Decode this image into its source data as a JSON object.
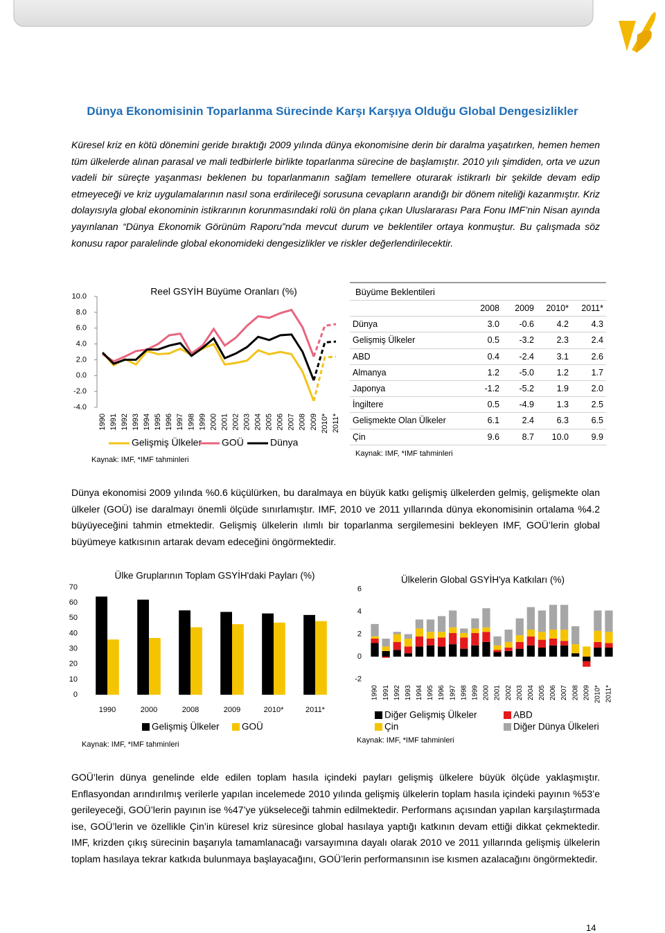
{
  "title": "Dünya Ekonomisinin Toparlanma Sürecinde Karşı Karşıya Olduğu Global Dengesizlikler",
  "paragraphs": [
    "Küresel kriz en kötü dönemini geride bıraktığı 2009 yılında dünya ekonomisine derin bir daralma yaşatırken, hemen hemen tüm ülkelerde alınan parasal ve mali tedbirlerle birlikte toparlanma sürecine de başlamıştır. 2010 yılı şimdiden, orta ve uzun vadeli bir süreçte yaşanması beklenen bu toparlanmanın sağlam temellere oturarak istikrarlı bir şekilde devam edip etmeyeceği ve kriz uygulamalarının nasıl sona erdirileceği sorusuna cevapların arandığı bir dönem niteliği kazanmıştır. Kriz dolayısıyla global ekonominin istikrarının korunmasındaki rolü ön plana çıkan Uluslararası Para Fonu IMF’nin Nisan ayında yayınlanan “Dünya Ekonomik Görünüm Raporu”nda mevcut durum ve beklentiler ortaya konmuştur. Bu çalışmada söz konusu rapor paralelinde global ekonomideki dengesizlikler ve riskler değerlendirilecektir.",
    "Dünya ekonomisi 2009 yılında %0.6 küçülürken, bu daralmaya en büyük katkı gelişmiş ülkelerden gelmiş, gelişmekte olan ülkeler (GOÜ) ise daralmayı önemli ölçüde sınırlamıştır. IMF, 2010 ve 2011 yıllarında dünya ekonomisinin ortalama %4.2 büyüyeceğini tahmin etmektedir. Gelişmiş ülkelerin ılımlı bir toparlanma sergilemesini bekleyen IMF, GOÜ’lerin global büyümeye katkısının artarak devam edeceğini öngörmektedir.",
    "GOÜ’lerin dünya genelinde elde edilen toplam hasıla içindeki payları gelişmiş ülkelere büyük ölçüde yaklaşmıştır. Enflasyondan arındırılmış verilerle yapılan incelemede 2010 yılında gelişmiş ülkelerin toplam hasıla içindeki payının %53’e gerileyeceği, GOÜ’lerin payının ise %47’ye yükseleceği tahmin edilmektedir. Performans açısından yapılan karşılaştırmada ise, GOÜ’lerin ve özellikle Çin’in küresel kriz süresince global hasılaya yaptığı katkının devam ettiği dikkat çekmektedir. IMF, krizden çıkış sürecinin başarıyla tamamlanacağı varsayımına dayalı olarak 2010 ve 2011 yıllarında gelişmiş ülkelerin toplam hasılaya tekrar katkıda bulunmaya başlayacağını, GOÜ’lerin performansının ise kısmen azalacağını öngörmektedir."
  ],
  "chart_data": [
    {
      "type": "line",
      "title": "Reel GSYİH Büyüme Oranları (%)",
      "categories": [
        "1990",
        "1991",
        "1992",
        "1993",
        "1994",
        "1995",
        "1996",
        "1997",
        "1998",
        "1999",
        "2000",
        "2001",
        "2002",
        "2003",
        "2004",
        "2005",
        "2006",
        "2007",
        "2008",
        "2009",
        "2010*",
        "2011*"
      ],
      "series": [
        {
          "name": "Gelişmiş Ülkeler",
          "color": "#f2c31a",
          "values": [
            2.9,
            1.3,
            2.1,
            1.4,
            3.1,
            2.7,
            2.8,
            3.4,
            2.6,
            3.4,
            4.0,
            1.4,
            1.6,
            1.9,
            3.2,
            2.7,
            3.0,
            2.7,
            0.5,
            -3.2,
            2.3,
            2.4
          ]
        },
        {
          "name": "GOÜ",
          "color": "#e8657e",
          "values": [
            2.7,
            1.8,
            2.4,
            3.1,
            3.3,
            4.0,
            5.1,
            5.3,
            2.8,
            3.8,
            5.9,
            3.8,
            4.8,
            6.3,
            7.5,
            7.3,
            7.9,
            8.3,
            6.1,
            2.4,
            6.3,
            6.5
          ]
        },
        {
          "name": "Dünya",
          "color": "#000000",
          "values": [
            2.9,
            1.5,
            2.0,
            2.0,
            3.3,
            3.3,
            3.8,
            4.1,
            2.5,
            3.5,
            4.7,
            2.2,
            2.8,
            3.6,
            4.9,
            4.5,
            5.1,
            5.2,
            3.0,
            -0.6,
            4.2,
            4.3
          ]
        }
      ],
      "forecast_dashed": true,
      "ylim": [
        -4,
        10
      ],
      "yticks": [
        {
          "value": -4,
          "label": "-4.0"
        },
        {
          "value": -2,
          "label": "-2.0"
        },
        {
          "value": 0,
          "label": "0.0"
        },
        {
          "value": 2,
          "label": "2.0"
        },
        {
          "value": 4,
          "label": "4.0"
        },
        {
          "value": 6,
          "label": "6.0"
        },
        {
          "value": 8,
          "label": "8.0"
        },
        {
          "value": 10,
          "label": "10.0"
        }
      ],
      "source": "Kaynak: IMF, *IMF tahminleri"
    },
    {
      "type": "bar",
      "stacked": false,
      "title": "Ülke Gruplarının Toplam GSYİH'daki Payları (%)",
      "categories": [
        "1990",
        "2000",
        "2008",
        "2009",
        "2010*",
        "2011*"
      ],
      "series": [
        {
          "name": "Gelişmiş Ülkeler",
          "color": "#000000",
          "values": [
            64,
            62,
            55,
            54,
            53,
            52
          ]
        },
        {
          "name": "GOÜ",
          "color": "#f5c400",
          "values": [
            36,
            37,
            44,
            46,
            47,
            48
          ]
        }
      ],
      "ylim": [
        0,
        70
      ],
      "yticks": [
        0,
        10,
        20,
        30,
        40,
        50,
        60,
        70
      ],
      "source": "Kaynak: IMF, *IMF tahminleri"
    },
    {
      "type": "bar",
      "stacked": true,
      "title": "Ülkelerin Global GSYİH'ya Katkıları (%)",
      "categories": [
        "1990",
        "1991",
        "1992",
        "1993",
        "1994",
        "1995",
        "1996",
        "1997",
        "1998",
        "1999",
        "2000",
        "2001",
        "2002",
        "2003",
        "2004",
        "2005",
        "2006",
        "2007",
        "2008",
        "2009",
        "2010*",
        "2011*"
      ],
      "series": [
        {
          "name": "Diğer Gelişmiş Ülkeler",
          "color": "#000000",
          "values": [
            1.2,
            0.5,
            0.6,
            0.3,
            0.9,
            1.0,
            0.9,
            1.1,
            0.7,
            1.0,
            1.3,
            0.4,
            0.5,
            0.7,
            1.0,
            0.8,
            1.0,
            1.0,
            0.3,
            -0.4,
            0.8,
            0.8
          ]
        },
        {
          "name": "ABD",
          "color": "#e41a1c",
          "values": [
            0.4,
            -0.1,
            0.7,
            0.6,
            0.9,
            0.6,
            0.8,
            1.0,
            1.0,
            1.1,
            0.9,
            0.2,
            0.3,
            0.6,
            0.8,
            0.7,
            0.6,
            0.4,
            0.0,
            -0.5,
            0.5,
            0.4
          ]
        },
        {
          "name": "Çin",
          "color": "#f5c400",
          "values": [
            0.2,
            0.4,
            0.7,
            0.7,
            0.7,
            0.6,
            0.5,
            0.5,
            0.4,
            0.4,
            0.4,
            0.4,
            0.5,
            0.6,
            0.6,
            0.7,
            0.8,
            1.0,
            0.8,
            0.9,
            1.0,
            1.0
          ]
        },
        {
          "name": "Diğer Dünya Ülkeleri",
          "color": "#a6a6a6",
          "values": [
            1.1,
            0.7,
            0.2,
            0.4,
            0.8,
            1.1,
            1.4,
            1.5,
            0.4,
            0.9,
            1.7,
            0.8,
            1.1,
            1.5,
            2.0,
            1.9,
            2.2,
            2.2,
            1.6,
            0.0,
            1.8,
            1.9
          ]
        }
      ],
      "ylim": [
        -2,
        6
      ],
      "yticks": [
        -2,
        0,
        2,
        4,
        6
      ],
      "source": "Kaynak: IMF, *IMF tahminleri"
    }
  ],
  "table": {
    "title": "Büyüme Beklentileri",
    "columns": [
      "2008",
      "2009",
      "2010*",
      "2011*"
    ],
    "rows": [
      {
        "label": "Dünya",
        "values": [
          "3.0",
          "-0.6",
          "4.2",
          "4.3"
        ]
      },
      {
        "label": "Gelişmiş Ülkeler",
        "values": [
          "0.5",
          "-3.2",
          "2.3",
          "2.4"
        ]
      },
      {
        "label": "ABD",
        "values": [
          "0.4",
          "-2.4",
          "3.1",
          "2.6"
        ]
      },
      {
        "label": "Almanya",
        "values": [
          "1.2",
          "-5.0",
          "1.2",
          "1.7"
        ]
      },
      {
        "label": "Japonya",
        "values": [
          "-1.2",
          "-5.2",
          "1.9",
          "2.0"
        ]
      },
      {
        "label": "İngiltere",
        "values": [
          "0.5",
          "-4.9",
          "1.3",
          "2.5"
        ]
      },
      {
        "label": "Gelişmekte Olan Ülkeler",
        "values": [
          "6.1",
          "2.4",
          "6.3",
          "6.5"
        ]
      },
      {
        "label": "Çin",
        "values": [
          "9.6",
          "8.7",
          "10.0",
          "9.9"
        ]
      }
    ],
    "source": "Kaynak: IMF, *IMF tahminleri"
  },
  "page_number": "14"
}
